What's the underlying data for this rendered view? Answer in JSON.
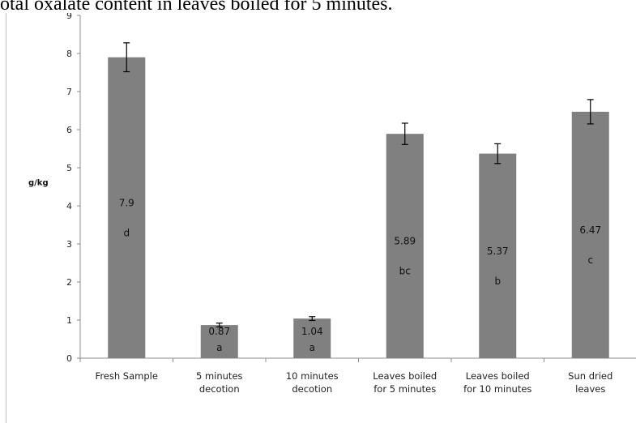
{
  "caption": "otal oxalate content in leaves boiled for 5 minutes.",
  "chart_data": {
    "type": "bar",
    "title": "",
    "xlabel": "",
    "ylabel": "g/kg",
    "ylim": [
      0,
      9
    ],
    "yticks": [
      0,
      1,
      2,
      3,
      4,
      5,
      6,
      7,
      8,
      9
    ],
    "grid": false,
    "categories": [
      [
        "Fresh Sample"
      ],
      [
        "5 minutes",
        "decotion"
      ],
      [
        "10 minutes",
        "decotion"
      ],
      [
        "Leaves boiled",
        "for 5 minutes"
      ],
      [
        "Leaves boiled",
        "for 10 minutes"
      ],
      [
        "Sun dried",
        "leaves"
      ]
    ],
    "values": [
      7.9,
      0.87,
      1.04,
      5.89,
      5.37,
      6.47
    ],
    "value_labels": [
      "7.9",
      "0.87",
      "1.04",
      "5.89",
      "5.37",
      "6.47"
    ],
    "errors": [
      0.38,
      0.05,
      0.05,
      0.28,
      0.26,
      0.32
    ],
    "letters": [
      "d",
      "a",
      "a",
      "bc",
      "b",
      "c"
    ],
    "bar_color": "#808080"
  }
}
